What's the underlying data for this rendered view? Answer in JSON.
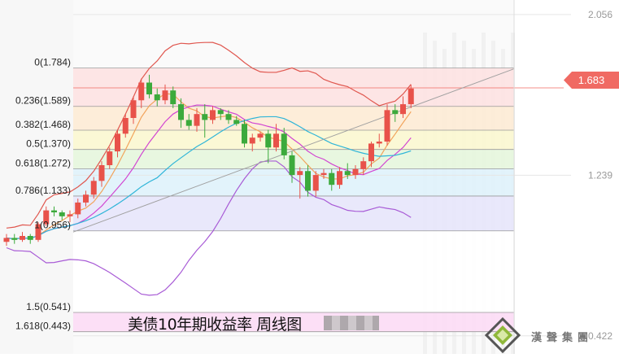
{
  "chart_data": {
    "type": "candlestick",
    "title": "美债10年期收益率 周线图",
    "y_axis_ticks": [
      "2.056",
      "1.239",
      "0.422"
    ],
    "ylim": [
      0.33,
      2.13
    ],
    "current_price": {
      "label": "1.683",
      "value": 1.683
    },
    "fibonacci_levels": [
      {
        "label": "0(1.784)",
        "value": 1.784,
        "color": "#fde2e2"
      },
      {
        "label": "0.236(1.589)",
        "value": 1.589,
        "color": "#fdebd5"
      },
      {
        "label": "0.382(1.468)",
        "value": 1.468,
        "color": "#fbf7d0"
      },
      {
        "label": "0.5(1.370)",
        "value": 1.37,
        "color": "#e6f6dd"
      },
      {
        "label": "0.618(1.272)",
        "value": 1.272,
        "color": "#dff2fb"
      },
      {
        "label": "0.786(1.133)",
        "value": 1.133,
        "color": "#e7e6fb"
      },
      {
        "label": "1(0.956)",
        "value": 0.956,
        "color": "#ffffff"
      },
      {
        "label": "1.5(0.541)",
        "value": 0.541,
        "color": "#fcdcf5"
      },
      {
        "label": "1.618(0.443)",
        "value": 0.443,
        "color": "#ffffff"
      }
    ],
    "candles": [
      [
        0.9,
        0.92,
        0.88,
        0.94
      ],
      [
        0.92,
        0.91,
        0.89,
        0.94
      ],
      [
        0.91,
        0.93,
        0.9,
        0.95
      ],
      [
        0.93,
        0.91,
        0.89,
        0.94
      ],
      [
        0.91,
        0.99,
        0.9,
        1.0
      ],
      [
        0.99,
        1.06,
        0.98,
        1.08
      ],
      [
        1.06,
        1.05,
        1.03,
        1.08
      ],
      [
        1.05,
        1.03,
        1.01,
        1.06
      ],
      [
        1.03,
        1.04,
        1.0,
        1.06
      ],
      [
        1.04,
        1.1,
        1.02,
        1.12
      ],
      [
        1.1,
        1.14,
        1.08,
        1.16
      ],
      [
        1.14,
        1.21,
        1.12,
        1.23
      ],
      [
        1.21,
        1.29,
        1.18,
        1.31
      ],
      [
        1.29,
        1.36,
        1.27,
        1.38
      ],
      [
        1.36,
        1.45,
        1.33,
        1.47
      ],
      [
        1.45,
        1.53,
        1.43,
        1.55
      ],
      [
        1.53,
        1.62,
        1.5,
        1.64
      ],
      [
        1.62,
        1.71,
        1.58,
        1.73
      ],
      [
        1.71,
        1.65,
        1.63,
        1.75
      ],
      [
        1.65,
        1.62,
        1.59,
        1.68
      ],
      [
        1.62,
        1.67,
        1.6,
        1.7
      ],
      [
        1.67,
        1.6,
        1.58,
        1.69
      ],
      [
        1.6,
        1.52,
        1.48,
        1.63
      ],
      [
        1.52,
        1.49,
        1.47,
        1.55
      ],
      [
        1.49,
        1.55,
        1.46,
        1.58
      ],
      [
        1.55,
        1.52,
        1.43,
        1.6
      ],
      [
        1.52,
        1.57,
        1.5,
        1.59
      ],
      [
        1.57,
        1.55,
        1.52,
        1.58
      ],
      [
        1.55,
        1.52,
        1.5,
        1.57
      ],
      [
        1.52,
        1.5,
        1.49,
        1.54
      ],
      [
        1.5,
        1.4,
        1.38,
        1.52
      ],
      [
        1.4,
        1.43,
        1.36,
        1.45
      ],
      [
        1.43,
        1.45,
        1.41,
        1.46
      ],
      [
        1.45,
        1.38,
        1.3,
        1.47
      ],
      [
        1.38,
        1.45,
        1.36,
        1.5
      ],
      [
        1.45,
        1.34,
        1.32,
        1.48
      ],
      [
        1.34,
        1.24,
        1.2,
        1.36
      ],
      [
        1.24,
        1.26,
        1.12,
        1.28
      ],
      [
        1.26,
        1.16,
        1.13,
        1.29
      ],
      [
        1.16,
        1.24,
        1.13,
        1.26
      ],
      [
        1.24,
        1.25,
        1.22,
        1.27
      ],
      [
        1.25,
        1.19,
        1.16,
        1.27
      ],
      [
        1.19,
        1.26,
        1.17,
        1.28
      ],
      [
        1.26,
        1.24,
        1.22,
        1.3
      ],
      [
        1.24,
        1.27,
        1.22,
        1.29
      ],
      [
        1.27,
        1.31,
        1.24,
        1.33
      ],
      [
        1.31,
        1.4,
        1.28,
        1.41
      ],
      [
        1.4,
        1.41,
        1.38,
        1.45
      ],
      [
        1.41,
        1.57,
        1.39,
        1.6
      ],
      [
        1.57,
        1.55,
        1.51,
        1.6
      ],
      [
        1.55,
        1.6,
        1.53,
        1.64
      ],
      [
        1.6,
        1.68,
        1.58,
        1.7
      ]
    ],
    "grid": true
  }
}
